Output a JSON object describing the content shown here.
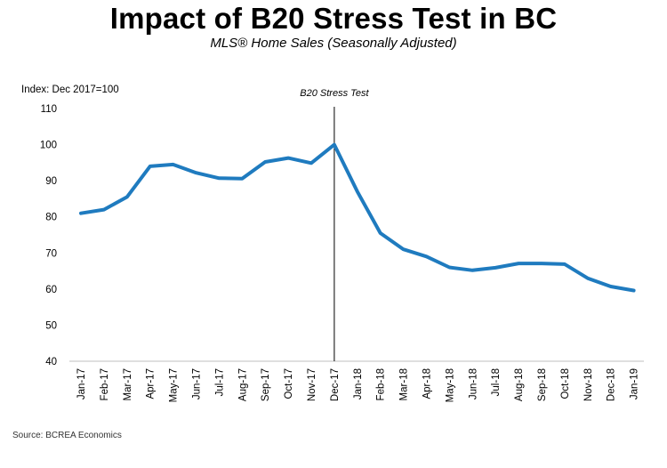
{
  "chart_data": {
    "type": "line",
    "title": "Impact of B20 Stress Test in BC",
    "subtitle": "MLS® Home Sales (Seasonally Adjusted)",
    "ylabel": "Index: Dec 2017=100",
    "xlabel": "",
    "ylim": [
      40,
      110
    ],
    "yticks": [
      40,
      50,
      60,
      70,
      80,
      90,
      100,
      110
    ],
    "categories": [
      "Jan-17",
      "Feb-17",
      "Mar-17",
      "Apr-17",
      "May-17",
      "Jun-17",
      "Jul-17",
      "Aug-17",
      "Sep-17",
      "Oct-17",
      "Nov-17",
      "Dec-17",
      "Jan-18",
      "Feb-18",
      "Mar-18",
      "Apr-18",
      "May-18",
      "Jun-18",
      "Jul-18",
      "Aug-18",
      "Sep-18",
      "Oct-18",
      "Nov-18",
      "Dec-18",
      "Jan-19"
    ],
    "series": [
      {
        "values": [
          81,
          82,
          85.5,
          94,
          94.5,
          92.2,
          90.7,
          90.6,
          95.2,
          96.3,
          94.9,
          100,
          87,
          75.5,
          71,
          69,
          66,
          65.2,
          65.9,
          67.1,
          67.1,
          66.9,
          63,
          60.7,
          59.6
        ]
      }
    ],
    "annotation": {
      "label": "B20 Stress Test",
      "at": "Dec-17"
    },
    "grid": false,
    "legend": "none",
    "colors": {
      "line": "#1f7bbf",
      "marker_line": "#000000"
    },
    "source": "Source: BCREA Economics"
  }
}
